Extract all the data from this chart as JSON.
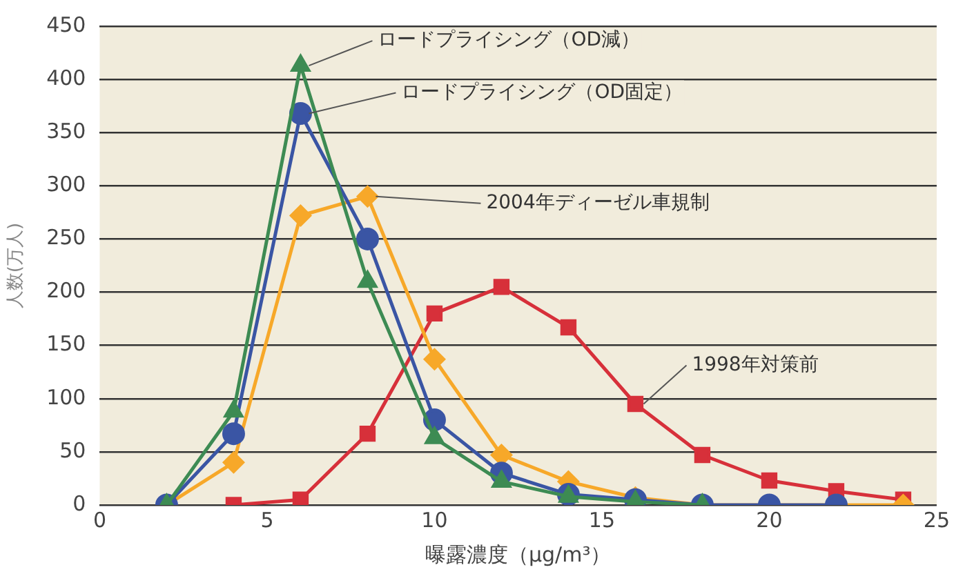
{
  "chart_data": {
    "type": "line",
    "xlabel": "曝露濃度（μg/m³）",
    "ylabel": "人数(万人)",
    "xlim": [
      0,
      25
    ],
    "xticks": [
      0,
      5,
      10,
      15,
      20,
      25
    ],
    "ylim": [
      0,
      450
    ],
    "yticks": [
      0,
      50,
      100,
      150,
      200,
      250,
      300,
      350,
      400,
      450
    ],
    "grid": "y",
    "legend": false,
    "series": [
      {
        "color": "#3d8b53",
        "marker": "triangle",
        "x": [
          2,
          4,
          6,
          8,
          10,
          12,
          14,
          16,
          18
        ],
        "values": [
          0,
          88,
          413,
          210,
          63,
          22,
          8,
          3,
          0
        ]
      },
      {
        "color": "#3a55a4",
        "marker": "circle",
        "x": [
          2,
          4,
          6,
          8,
          10,
          12,
          14,
          16,
          18,
          20,
          22
        ],
        "values": [
          0,
          67,
          368,
          250,
          80,
          30,
          10,
          5,
          0,
          0,
          0
        ]
      },
      {
        "color": "#f7a829",
        "marker": "diamond",
        "x": [
          2,
          4,
          6,
          8,
          10,
          12,
          14,
          16,
          18,
          20,
          22,
          24
        ],
        "values": [
          0,
          40,
          272,
          290,
          137,
          47,
          22,
          7,
          0,
          0,
          0,
          0
        ]
      },
      {
        "color": "#d7303a",
        "marker": "square",
        "x": [
          4,
          6,
          8,
          10,
          12,
          14,
          16,
          18,
          20,
          22,
          24
        ],
        "values": [
          0,
          5,
          67,
          180,
          205,
          167,
          95,
          47,
          23,
          13,
          5
        ]
      }
    ],
    "annotations": [
      {
        "text": "ロードプライシング（OD減）",
        "x": 6,
        "y": 413
      },
      {
        "text": "ロードプライシング（OD固定）",
        "x": 6,
        "y": 368
      },
      {
        "text": "2004年ディーゼル車規制",
        "x": 8,
        "y": 290
      },
      {
        "text": "1998年対策前",
        "x": 16,
        "y": 95
      }
    ]
  }
}
